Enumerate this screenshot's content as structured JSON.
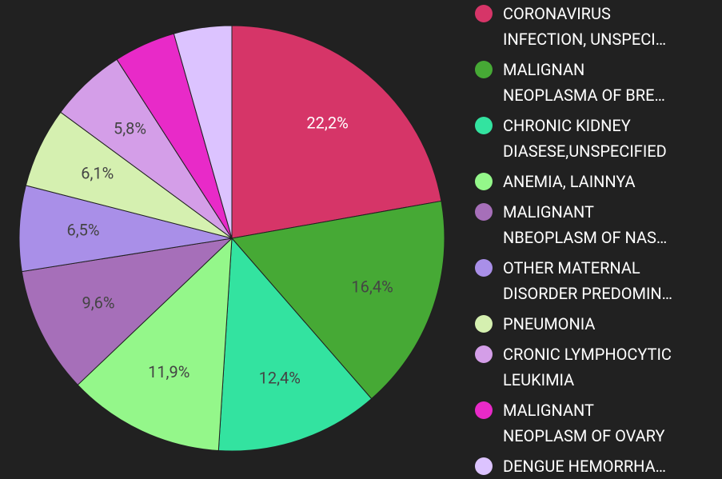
{
  "chart_data": {
    "type": "pie",
    "categories": [
      "CORONAVIRUS\nINFECTION, UNSPECI…",
      "MALIGNAN\nNEOPLASMA OF BRE…",
      "CHRONIC KIDNEY\nDIASESE,UNSPECIFIED",
      "ANEMIA, LAINNYA",
      "MALIGNANT\nNBEOPLASM OF NAS…",
      "OTHER MATERNAL\nDISORDER PREDOMIN…",
      "PNEUMONIA",
      "CRONIC LYMPHOCYTIC\nLEUKIMIA",
      "MALIGNANT\nNEOPLASM OF OVARY",
      "DENGUE HEMORRHA…"
    ],
    "values": [
      22.2,
      16.4,
      12.4,
      11.9,
      9.6,
      6.5,
      6.1,
      5.8,
      4.7,
      4.4
    ],
    "value_labels": [
      "22,2%",
      "16,4%",
      "12,4%",
      "11,9%",
      "9,6%",
      "6,5%",
      "6,1%",
      "5,8%",
      null,
      null
    ],
    "colors": [
      "#d63568",
      "#46a935",
      "#33e3a0",
      "#94f78a",
      "#a66fb9",
      "#a98fe8",
      "#d5f0b0",
      "#d49ee8",
      "#e82ac8",
      "#dcc3ff"
    ],
    "legend": "right"
  }
}
